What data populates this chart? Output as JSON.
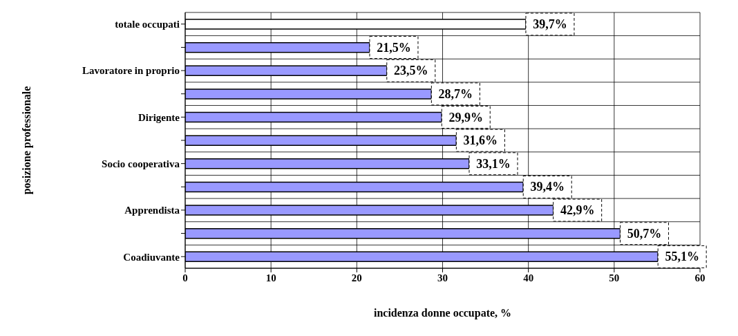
{
  "chart_data": {
    "type": "bar",
    "orientation": "horizontal",
    "xlabel": "incidenza donne occupate, %",
    "ylabel": "posizione professionale",
    "categories": [
      "totale occupati",
      null,
      "Lavoratore in proprio",
      null,
      "Dirigente",
      null,
      "Socio cooperativa",
      null,
      "Apprendista",
      null,
      "Coadiuvante"
    ],
    "values": [
      39.7,
      21.5,
      23.5,
      28.7,
      29.9,
      31.6,
      33.1,
      39.4,
      42.9,
      50.7,
      55.1
    ],
    "colors": [
      "#ffffff",
      "#9999ff",
      "#9999ff",
      "#9999ff",
      "#9999ff",
      "#9999ff",
      "#9999ff",
      "#9999ff",
      "#9999ff",
      "#9999ff",
      "#9999ff"
    ],
    "value_labels": [
      "39,7%",
      "21,5%",
      "23,5%",
      "28,7%",
      "29,9%",
      "31,6%",
      "33,1%",
      "39,4%",
      "42,9%",
      "50,7%",
      "55,1%"
    ],
    "xlim": [
      0,
      60
    ],
    "xticks": [
      0,
      10,
      20,
      30,
      40,
      50,
      60
    ],
    "grid": true
  }
}
